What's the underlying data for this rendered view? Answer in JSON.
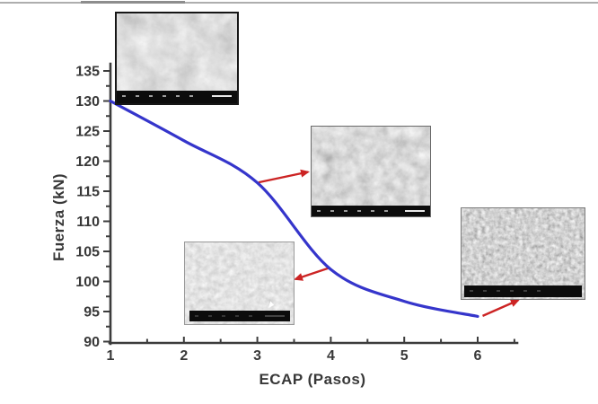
{
  "chart_data": {
    "type": "line",
    "title": "",
    "xlabel": "ECAP (Pasos)",
    "ylabel": "Fuerza (kN)",
    "x": [
      1,
      2,
      3,
      4,
      5,
      6
    ],
    "series": [
      {
        "name": "Fuerza",
        "values": [
          130,
          123.4,
          116.4,
          102,
          96.7,
          94.2
        ]
      }
    ],
    "xlim": [
      1,
      6.5
    ],
    "ylim": [
      90,
      135
    ],
    "x_ticks": [
      1,
      2,
      3,
      4,
      5,
      6
    ],
    "y_ticks": [
      90,
      95,
      100,
      105,
      110,
      115,
      120,
      125,
      130,
      135
    ],
    "grid": false,
    "legend": "none",
    "line_color": "#3535cb",
    "axis_color": "#3c3c3c",
    "tick_label_color": "#383838",
    "annotation_arrow_color": "#cc2424"
  },
  "annotations": {
    "arrows": [
      {
        "pass": 3,
        "target": "sem-2"
      },
      {
        "pass": 4,
        "target": "sem-3"
      },
      {
        "pass": 6,
        "target": "sem-4"
      }
    ]
  },
  "insets": {
    "count": 4,
    "kind": "sem-micrograph"
  }
}
